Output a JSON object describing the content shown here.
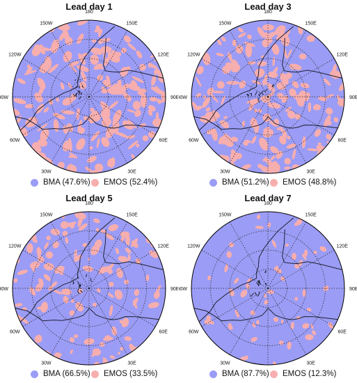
{
  "colors": {
    "bma": "#9b9cf5",
    "emos": "#f7aeae",
    "grid": "#222222",
    "coast": "#1e2133"
  },
  "meridian_labels": [
    "180",
    "150E",
    "120E",
    "90E",
    "60E",
    "30E",
    "0",
    "30W",
    "60W",
    "90W",
    "120W",
    "150W"
  ],
  "panels": [
    {
      "title": "Lead day 1",
      "bma_label": "BMA (47.6%)",
      "emos_label": "EMOS (52.4%)",
      "bma_share": 0.476,
      "emos_share": 0.524
    },
    {
      "title": "Lead day 3",
      "bma_label": "BMA (51.2%)",
      "emos_label": "EMOS (48.8%)",
      "bma_share": 0.512,
      "emos_share": 0.488
    },
    {
      "title": "Lead day 5",
      "bma_label": "BMA (66.5%)",
      "emos_label": "EMOS (33.5%)",
      "bma_share": 0.665,
      "emos_share": 0.335
    },
    {
      "title": "Lead day 7",
      "bma_label": "BMA (87.7%)",
      "emos_label": "EMOS (12.3%)",
      "bma_share": 0.877,
      "emos_share": 0.123
    }
  ]
}
